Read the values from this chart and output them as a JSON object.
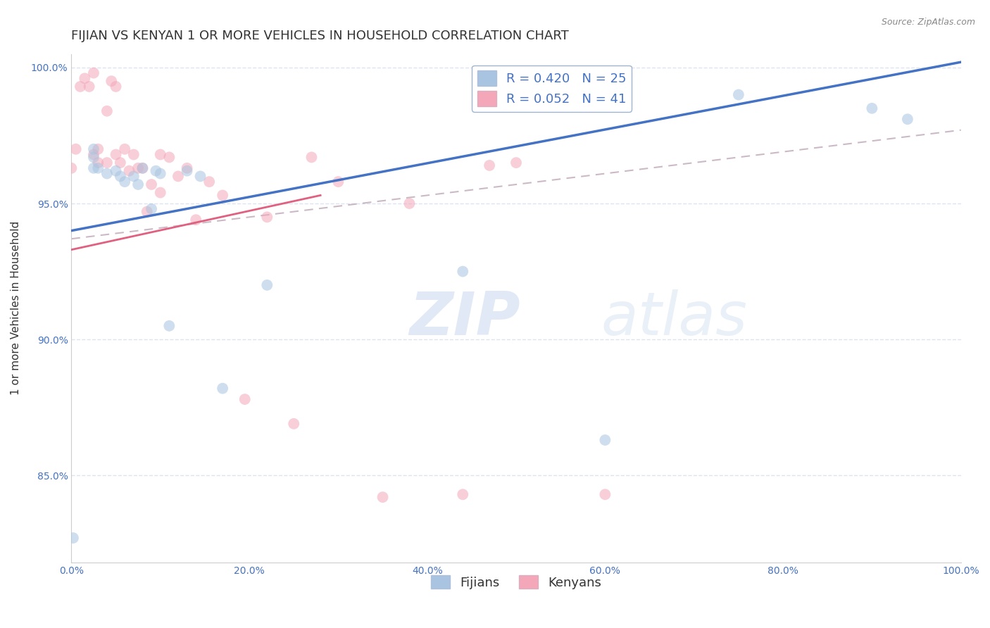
{
  "title": "FIJIAN VS KENYAN 1 OR MORE VEHICLES IN HOUSEHOLD CORRELATION CHART",
  "source": "Source: ZipAtlas.com",
  "ylabel": "1 or more Vehicles in Household",
  "watermark": "ZIPatlas",
  "fijian_color": "#a8c4e0",
  "kenyan_color": "#f4a7b9",
  "fijian_line_color": "#4472c4",
  "kenyan_line_color": "#e06080",
  "diag_line_color": "#c0a8b8",
  "legend_fijian_r": "R = 0.420",
  "legend_fijian_n": "N = 25",
  "legend_kenyan_r": "R = 0.052",
  "legend_kenyan_n": "N = 41",
  "xlim": [
    0.0,
    1.0
  ],
  "ylim": [
    0.818,
    1.005
  ],
  "fijian_line": [
    0.0,
    0.94,
    1.0,
    1.002
  ],
  "kenyan_line": [
    0.0,
    0.933,
    0.28,
    0.953
  ],
  "diag_line": [
    0.0,
    0.937,
    1.0,
    0.977
  ],
  "fijian_x": [
    0.002,
    0.025,
    0.025,
    0.025,
    0.03,
    0.04,
    0.05,
    0.055,
    0.06,
    0.07,
    0.075,
    0.08,
    0.09,
    0.095,
    0.1,
    0.11,
    0.13,
    0.145,
    0.17,
    0.22,
    0.44,
    0.6,
    0.75,
    0.9,
    0.94
  ],
  "fijian_y": [
    0.827,
    0.97,
    0.967,
    0.963,
    0.963,
    0.961,
    0.962,
    0.96,
    0.958,
    0.96,
    0.957,
    0.963,
    0.948,
    0.962,
    0.961,
    0.905,
    0.962,
    0.96,
    0.882,
    0.92,
    0.925,
    0.863,
    0.99,
    0.985,
    0.981
  ],
  "kenyan_x": [
    0.0,
    0.005,
    0.01,
    0.015,
    0.02,
    0.025,
    0.025,
    0.03,
    0.03,
    0.04,
    0.04,
    0.045,
    0.05,
    0.05,
    0.055,
    0.06,
    0.065,
    0.07,
    0.075,
    0.08,
    0.085,
    0.09,
    0.1,
    0.1,
    0.11,
    0.12,
    0.13,
    0.14,
    0.155,
    0.17,
    0.195,
    0.22,
    0.25,
    0.27,
    0.3,
    0.35,
    0.38,
    0.44,
    0.47,
    0.5,
    0.6
  ],
  "kenyan_y": [
    0.963,
    0.97,
    0.993,
    0.996,
    0.993,
    0.968,
    0.998,
    0.97,
    0.965,
    0.965,
    0.984,
    0.995,
    0.993,
    0.968,
    0.965,
    0.97,
    0.962,
    0.968,
    0.963,
    0.963,
    0.947,
    0.957,
    0.968,
    0.954,
    0.967,
    0.96,
    0.963,
    0.944,
    0.958,
    0.953,
    0.878,
    0.945,
    0.869,
    0.967,
    0.958,
    0.842,
    0.95,
    0.843,
    0.964,
    0.965,
    0.843
  ],
  "marker_size": 130,
  "marker_alpha": 0.55,
  "background_color": "#ffffff",
  "tick_color": "#4472c4",
  "grid_color": "#dde4f0",
  "title_fontsize": 13,
  "label_fontsize": 11,
  "tick_fontsize": 10,
  "legend_fontsize": 13
}
